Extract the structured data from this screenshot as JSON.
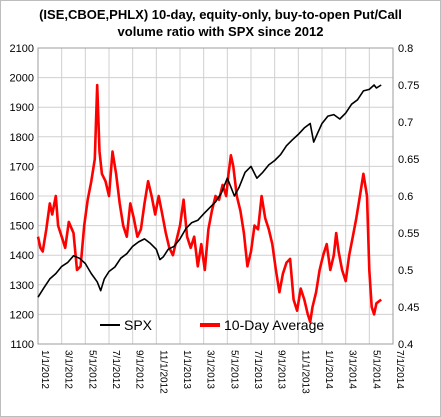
{
  "chart_data": {
    "type": "line",
    "title_line1": "(ISE,CBOE,PHLX) 10-day, equity-only, buy-to-open Put/Call",
    "title_line2": "volume ratio with SPX since 2012",
    "x_ticks": [
      "1/1/2012",
      "3/1/2012",
      "5/1/2012",
      "7/1/2012",
      "9/1/2012",
      "11/1/2012",
      "1/1/2013",
      "3/1/2013",
      "5/1/2013",
      "7/1/2013",
      "9/1/2013",
      "11/1/2013",
      "1/1/2014",
      "3/1/2014",
      "5/1/2014",
      "7/1/2014"
    ],
    "x_range": [
      "1/1/2012",
      "7/1/2014"
    ],
    "y_left": {
      "min": 1100,
      "max": 2100,
      "ticks": [
        1100,
        1200,
        1300,
        1400,
        1500,
        1600,
        1700,
        1800,
        1900,
        2000,
        2100
      ]
    },
    "y_right": {
      "min": 0.4,
      "max": 0.8,
      "ticks": [
        "0.4",
        "0.45",
        "0.5",
        "0.55",
        "0.6",
        "0.65",
        "0.7",
        "0.75",
        "0.8"
      ]
    },
    "grid": true,
    "legend_position": "bottom-center",
    "series": [
      {
        "name": "SPX",
        "color": "#000000",
        "axis": "left",
        "points": [
          [
            0,
            1258
          ],
          [
            0.5,
            1290
          ],
          [
            1,
            1320
          ],
          [
            1.5,
            1338
          ],
          [
            2,
            1362
          ],
          [
            2.5,
            1375
          ],
          [
            3,
            1398
          ],
          [
            3.5,
            1390
          ],
          [
            4,
            1372
          ],
          [
            4.5,
            1338
          ],
          [
            5,
            1310
          ],
          [
            5.3,
            1280
          ],
          [
            5.6,
            1320
          ],
          [
            6,
            1345
          ],
          [
            6.5,
            1360
          ],
          [
            7,
            1390
          ],
          [
            7.5,
            1405
          ],
          [
            8,
            1430
          ],
          [
            8.5,
            1445
          ],
          [
            9,
            1455
          ],
          [
            9.5,
            1440
          ],
          [
            10,
            1420
          ],
          [
            10.3,
            1385
          ],
          [
            10.6,
            1395
          ],
          [
            11,
            1420
          ],
          [
            11.5,
            1430
          ],
          [
            12,
            1455
          ],
          [
            12.5,
            1490
          ],
          [
            13,
            1510
          ],
          [
            13.5,
            1518
          ],
          [
            14,
            1540
          ],
          [
            14.5,
            1560
          ],
          [
            15,
            1580
          ],
          [
            15.5,
            1610
          ],
          [
            16,
            1660
          ],
          [
            16.3,
            1630
          ],
          [
            16.6,
            1600
          ],
          [
            17,
            1630
          ],
          [
            17.5,
            1680
          ],
          [
            18,
            1700
          ],
          [
            18.5,
            1660
          ],
          [
            19,
            1680
          ],
          [
            19.5,
            1705
          ],
          [
            20,
            1720
          ],
          [
            20.5,
            1740
          ],
          [
            21,
            1770
          ],
          [
            21.5,
            1790
          ],
          [
            22,
            1808
          ],
          [
            22.5,
            1830
          ],
          [
            23,
            1845
          ],
          [
            23.3,
            1782
          ],
          [
            23.6,
            1810
          ],
          [
            24,
            1845
          ],
          [
            24.5,
            1870
          ],
          [
            25,
            1875
          ],
          [
            25.5,
            1860
          ],
          [
            26,
            1880
          ],
          [
            26.5,
            1910
          ],
          [
            27,
            1925
          ],
          [
            27.5,
            1955
          ],
          [
            28,
            1960
          ],
          [
            28.4,
            1975
          ],
          [
            28.6,
            1965
          ],
          [
            29,
            1975
          ]
        ]
      },
      {
        "name": "10-Day Average",
        "color": "#ff0000",
        "axis": "right",
        "points": [
          [
            0,
            0.545
          ],
          [
            0.2,
            0.53
          ],
          [
            0.4,
            0.525
          ],
          [
            0.7,
            0.555
          ],
          [
            1,
            0.59
          ],
          [
            1.2,
            0.575
          ],
          [
            1.5,
            0.6
          ],
          [
            1.7,
            0.56
          ],
          [
            2,
            0.545
          ],
          [
            2.3,
            0.53
          ],
          [
            2.6,
            0.565
          ],
          [
            3,
            0.55
          ],
          [
            3.3,
            0.5
          ],
          [
            3.6,
            0.505
          ],
          [
            3.9,
            0.56
          ],
          [
            4.2,
            0.595
          ],
          [
            4.5,
            0.62
          ],
          [
            4.8,
            0.65
          ],
          [
            5,
            0.75
          ],
          [
            5.2,
            0.66
          ],
          [
            5.4,
            0.63
          ],
          [
            5.7,
            0.62
          ],
          [
            6,
            0.6
          ],
          [
            6.3,
            0.66
          ],
          [
            6.6,
            0.63
          ],
          [
            6.9,
            0.59
          ],
          [
            7.2,
            0.56
          ],
          [
            7.5,
            0.545
          ],
          [
            7.8,
            0.59
          ],
          [
            8.1,
            0.57
          ],
          [
            8.4,
            0.545
          ],
          [
            8.7,
            0.555
          ],
          [
            9,
            0.59
          ],
          [
            9.3,
            0.62
          ],
          [
            9.6,
            0.6
          ],
          [
            9.9,
            0.575
          ],
          [
            10.2,
            0.6
          ],
          [
            10.5,
            0.575
          ],
          [
            10.8,
            0.55
          ],
          [
            11.1,
            0.53
          ],
          [
            11.4,
            0.52
          ],
          [
            11.7,
            0.54
          ],
          [
            12,
            0.56
          ],
          [
            12.3,
            0.595
          ],
          [
            12.6,
            0.545
          ],
          [
            12.9,
            0.53
          ],
          [
            13.2,
            0.545
          ],
          [
            13.5,
            0.505
          ],
          [
            13.8,
            0.535
          ],
          [
            14.1,
            0.5
          ],
          [
            14.4,
            0.555
          ],
          [
            14.7,
            0.58
          ],
          [
            15,
            0.6
          ],
          [
            15.3,
            0.595
          ],
          [
            15.6,
            0.615
          ],
          [
            15.9,
            0.6
          ],
          [
            16.1,
            0.63
          ],
          [
            16.3,
            0.655
          ],
          [
            16.5,
            0.64
          ],
          [
            16.8,
            0.6
          ],
          [
            17.1,
            0.58
          ],
          [
            17.4,
            0.55
          ],
          [
            17.7,
            0.505
          ],
          [
            18,
            0.525
          ],
          [
            18.3,
            0.56
          ],
          [
            18.6,
            0.555
          ],
          [
            18.9,
            0.6
          ],
          [
            19.2,
            0.57
          ],
          [
            19.5,
            0.555
          ],
          [
            19.8,
            0.535
          ],
          [
            20.1,
            0.5
          ],
          [
            20.4,
            0.47
          ],
          [
            20.7,
            0.495
          ],
          [
            21,
            0.51
          ],
          [
            21.3,
            0.515
          ],
          [
            21.6,
            0.46
          ],
          [
            21.9,
            0.445
          ],
          [
            22.2,
            0.475
          ],
          [
            22.5,
            0.46
          ],
          [
            22.8,
            0.44
          ],
          [
            23,
            0.43
          ],
          [
            23.2,
            0.45
          ],
          [
            23.5,
            0.47
          ],
          [
            23.8,
            0.5
          ],
          [
            24.1,
            0.52
          ],
          [
            24.4,
            0.535
          ],
          [
            24.7,
            0.5
          ],
          [
            25,
            0.52
          ],
          [
            25.2,
            0.55
          ],
          [
            25.4,
            0.525
          ],
          [
            25.7,
            0.5
          ],
          [
            26,
            0.485
          ],
          [
            26.3,
            0.52
          ],
          [
            26.6,
            0.545
          ],
          [
            26.9,
            0.57
          ],
          [
            27.2,
            0.6
          ],
          [
            27.5,
            0.63
          ],
          [
            27.8,
            0.6
          ],
          [
            28,
            0.5
          ],
          [
            28.2,
            0.45
          ],
          [
            28.4,
            0.44
          ],
          [
            28.6,
            0.455
          ],
          [
            29,
            0.46
          ]
        ]
      }
    ]
  }
}
